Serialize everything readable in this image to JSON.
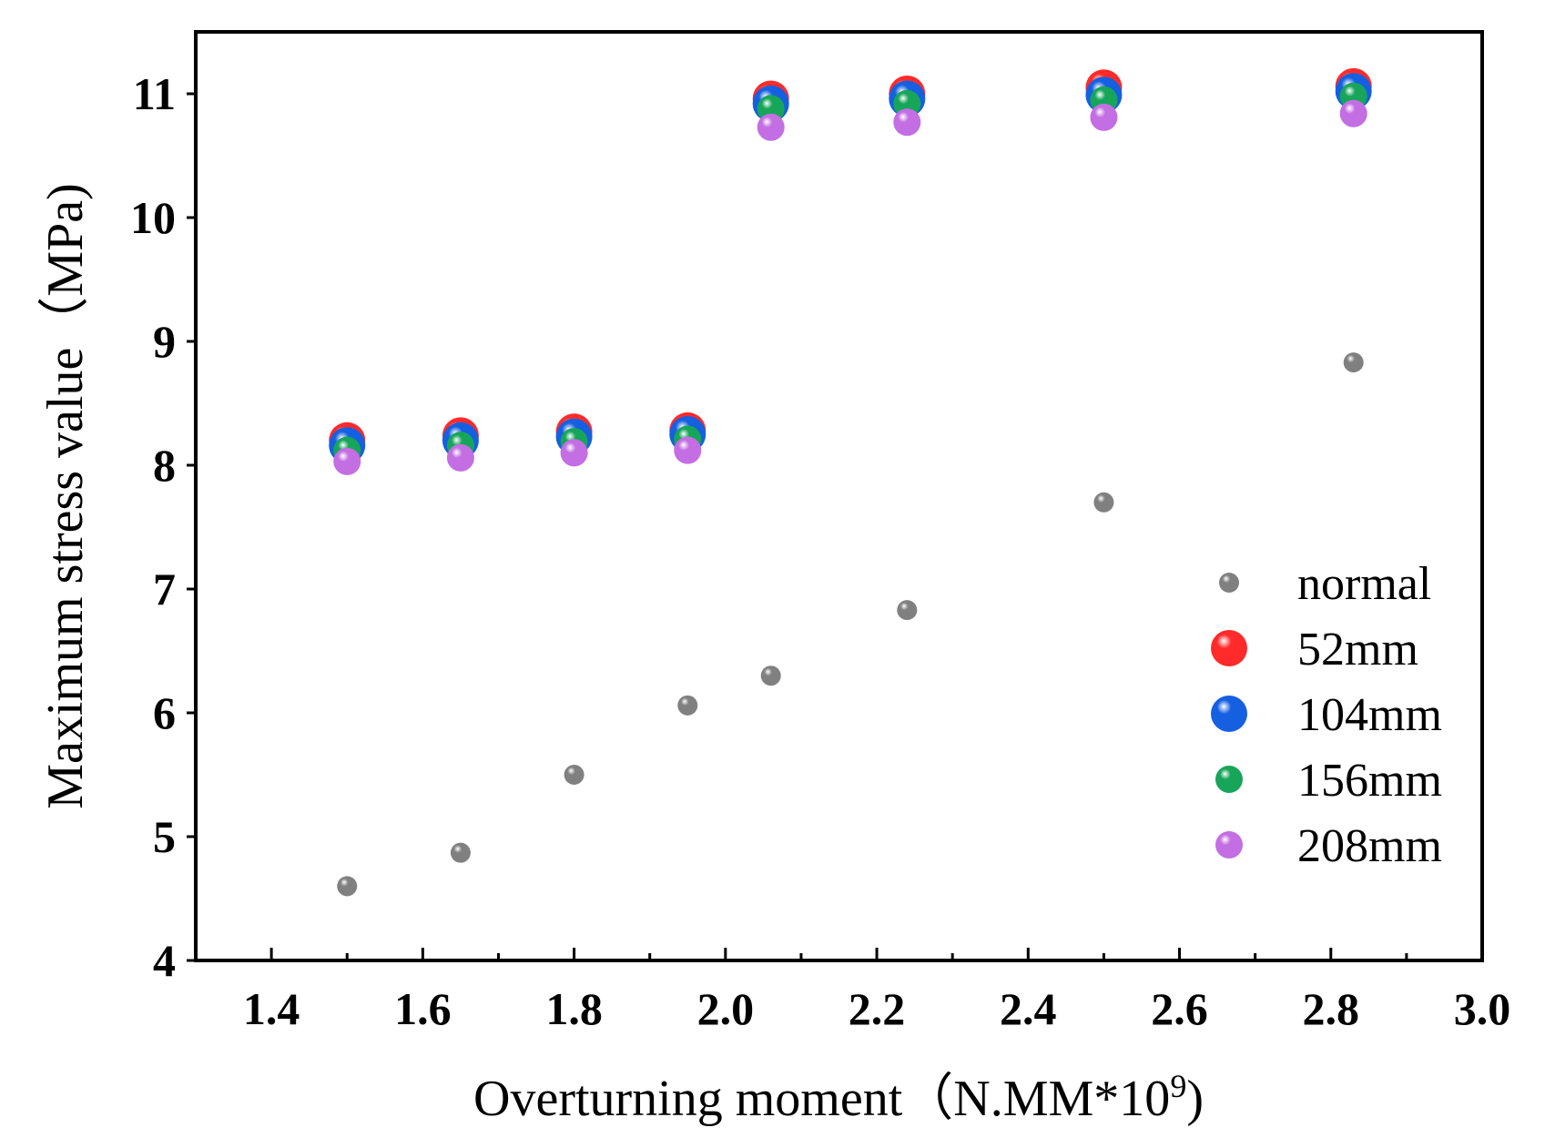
{
  "chart_data": {
    "type": "scatter",
    "title": "",
    "xlabel": "Overturning moment（N.MM*10",
    "xlabel_superscript": "9",
    "xlabel_suffix": ")",
    "ylabel": "Maximum stress value（MPa)",
    "xlim": [
      1.3,
      3.0
    ],
    "ylim": [
      4,
      11.5
    ],
    "x_ticks": [
      1.4,
      1.6,
      1.8,
      2.0,
      2.2,
      2.4,
      2.6,
      2.8,
      3.0
    ],
    "x_tick_labels": [
      "1.4",
      "1.6",
      "1.8",
      "2.0",
      "2.2",
      "2.4",
      "2.6",
      "2.8",
      "3.0"
    ],
    "y_ticks": [
      4,
      5,
      6,
      7,
      8,
      9,
      10,
      11
    ],
    "y_tick_labels": [
      "4",
      "5",
      "6",
      "7",
      "8",
      "9",
      "10",
      "11"
    ],
    "x": [
      1.5,
      1.65,
      1.8,
      1.95,
      2.06,
      2.24,
      2.5,
      2.83
    ],
    "legend_position": "right",
    "series": [
      {
        "name": "normal",
        "color": "#808080",
        "marker": "small",
        "values": [
          4.6,
          4.87,
          5.5,
          6.06,
          6.3,
          6.83,
          7.7,
          8.83
        ]
      },
      {
        "name": "52mm",
        "color": "#ff2a2a",
        "marker": "large",
        "values": [
          8.2,
          8.24,
          8.27,
          8.28,
          10.96,
          11.0,
          11.05,
          11.06
        ]
      },
      {
        "name": "104mm",
        "color": "#1560e0",
        "marker": "large",
        "values": [
          8.16,
          8.2,
          8.23,
          8.25,
          10.92,
          10.96,
          10.99,
          11.02
        ]
      },
      {
        "name": "156mm",
        "color": "#17a55a",
        "marker": "medium",
        "values": [
          8.12,
          8.16,
          8.19,
          8.21,
          10.88,
          10.92,
          10.95,
          10.98
        ]
      },
      {
        "name": "208mm",
        "color": "#c36ee3",
        "marker": "medium",
        "values": [
          8.03,
          8.06,
          8.1,
          8.12,
          10.73,
          10.77,
          10.81,
          10.84
        ]
      }
    ]
  }
}
